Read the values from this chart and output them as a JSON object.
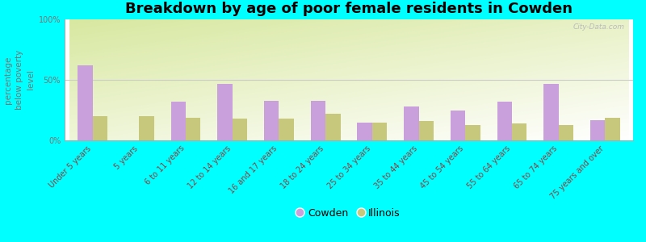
{
  "title": "Breakdown by age of poor female residents in Cowden",
  "categories": [
    "Under 5 years",
    "5 years",
    "6 to 11 years",
    "12 to 14 years",
    "16 and 17 years",
    "18 to 24 years",
    "25 to 34 years",
    "35 to 44 years",
    "45 to 54 years",
    "55 to 64 years",
    "65 to 74 years",
    "75 years and over"
  ],
  "cowden_values": [
    62,
    0,
    32,
    47,
    33,
    33,
    15,
    28,
    25,
    32,
    47,
    17
  ],
  "illinois_values": [
    20,
    20,
    19,
    18,
    18,
    22,
    15,
    16,
    13,
    14,
    13,
    19
  ],
  "cowden_color": "#c9a0dc",
  "illinois_color": "#c8c87d",
  "background_color": "#00ffff",
  "plot_bg_color1": "#d8e8a0",
  "plot_bg_color2": "#f0f8e8",
  "plot_bg_color3": "#ffffff",
  "ylabel": "percentage\nbelow poverty\nlevel",
  "ylim": [
    0,
    100
  ],
  "yticks": [
    0,
    50,
    100
  ],
  "ytick_labels": [
    "0%",
    "50%",
    "100%"
  ],
  "title_fontsize": 13,
  "axis_label_fontsize": 7.5,
  "tick_fontsize": 7,
  "xtick_color": "#884444",
  "ytick_color": "#777777",
  "legend_labels": [
    "Cowden",
    "Illinois"
  ],
  "watermark": "City-Data.com",
  "bar_width": 0.32,
  "grid_color": "#cccccc"
}
